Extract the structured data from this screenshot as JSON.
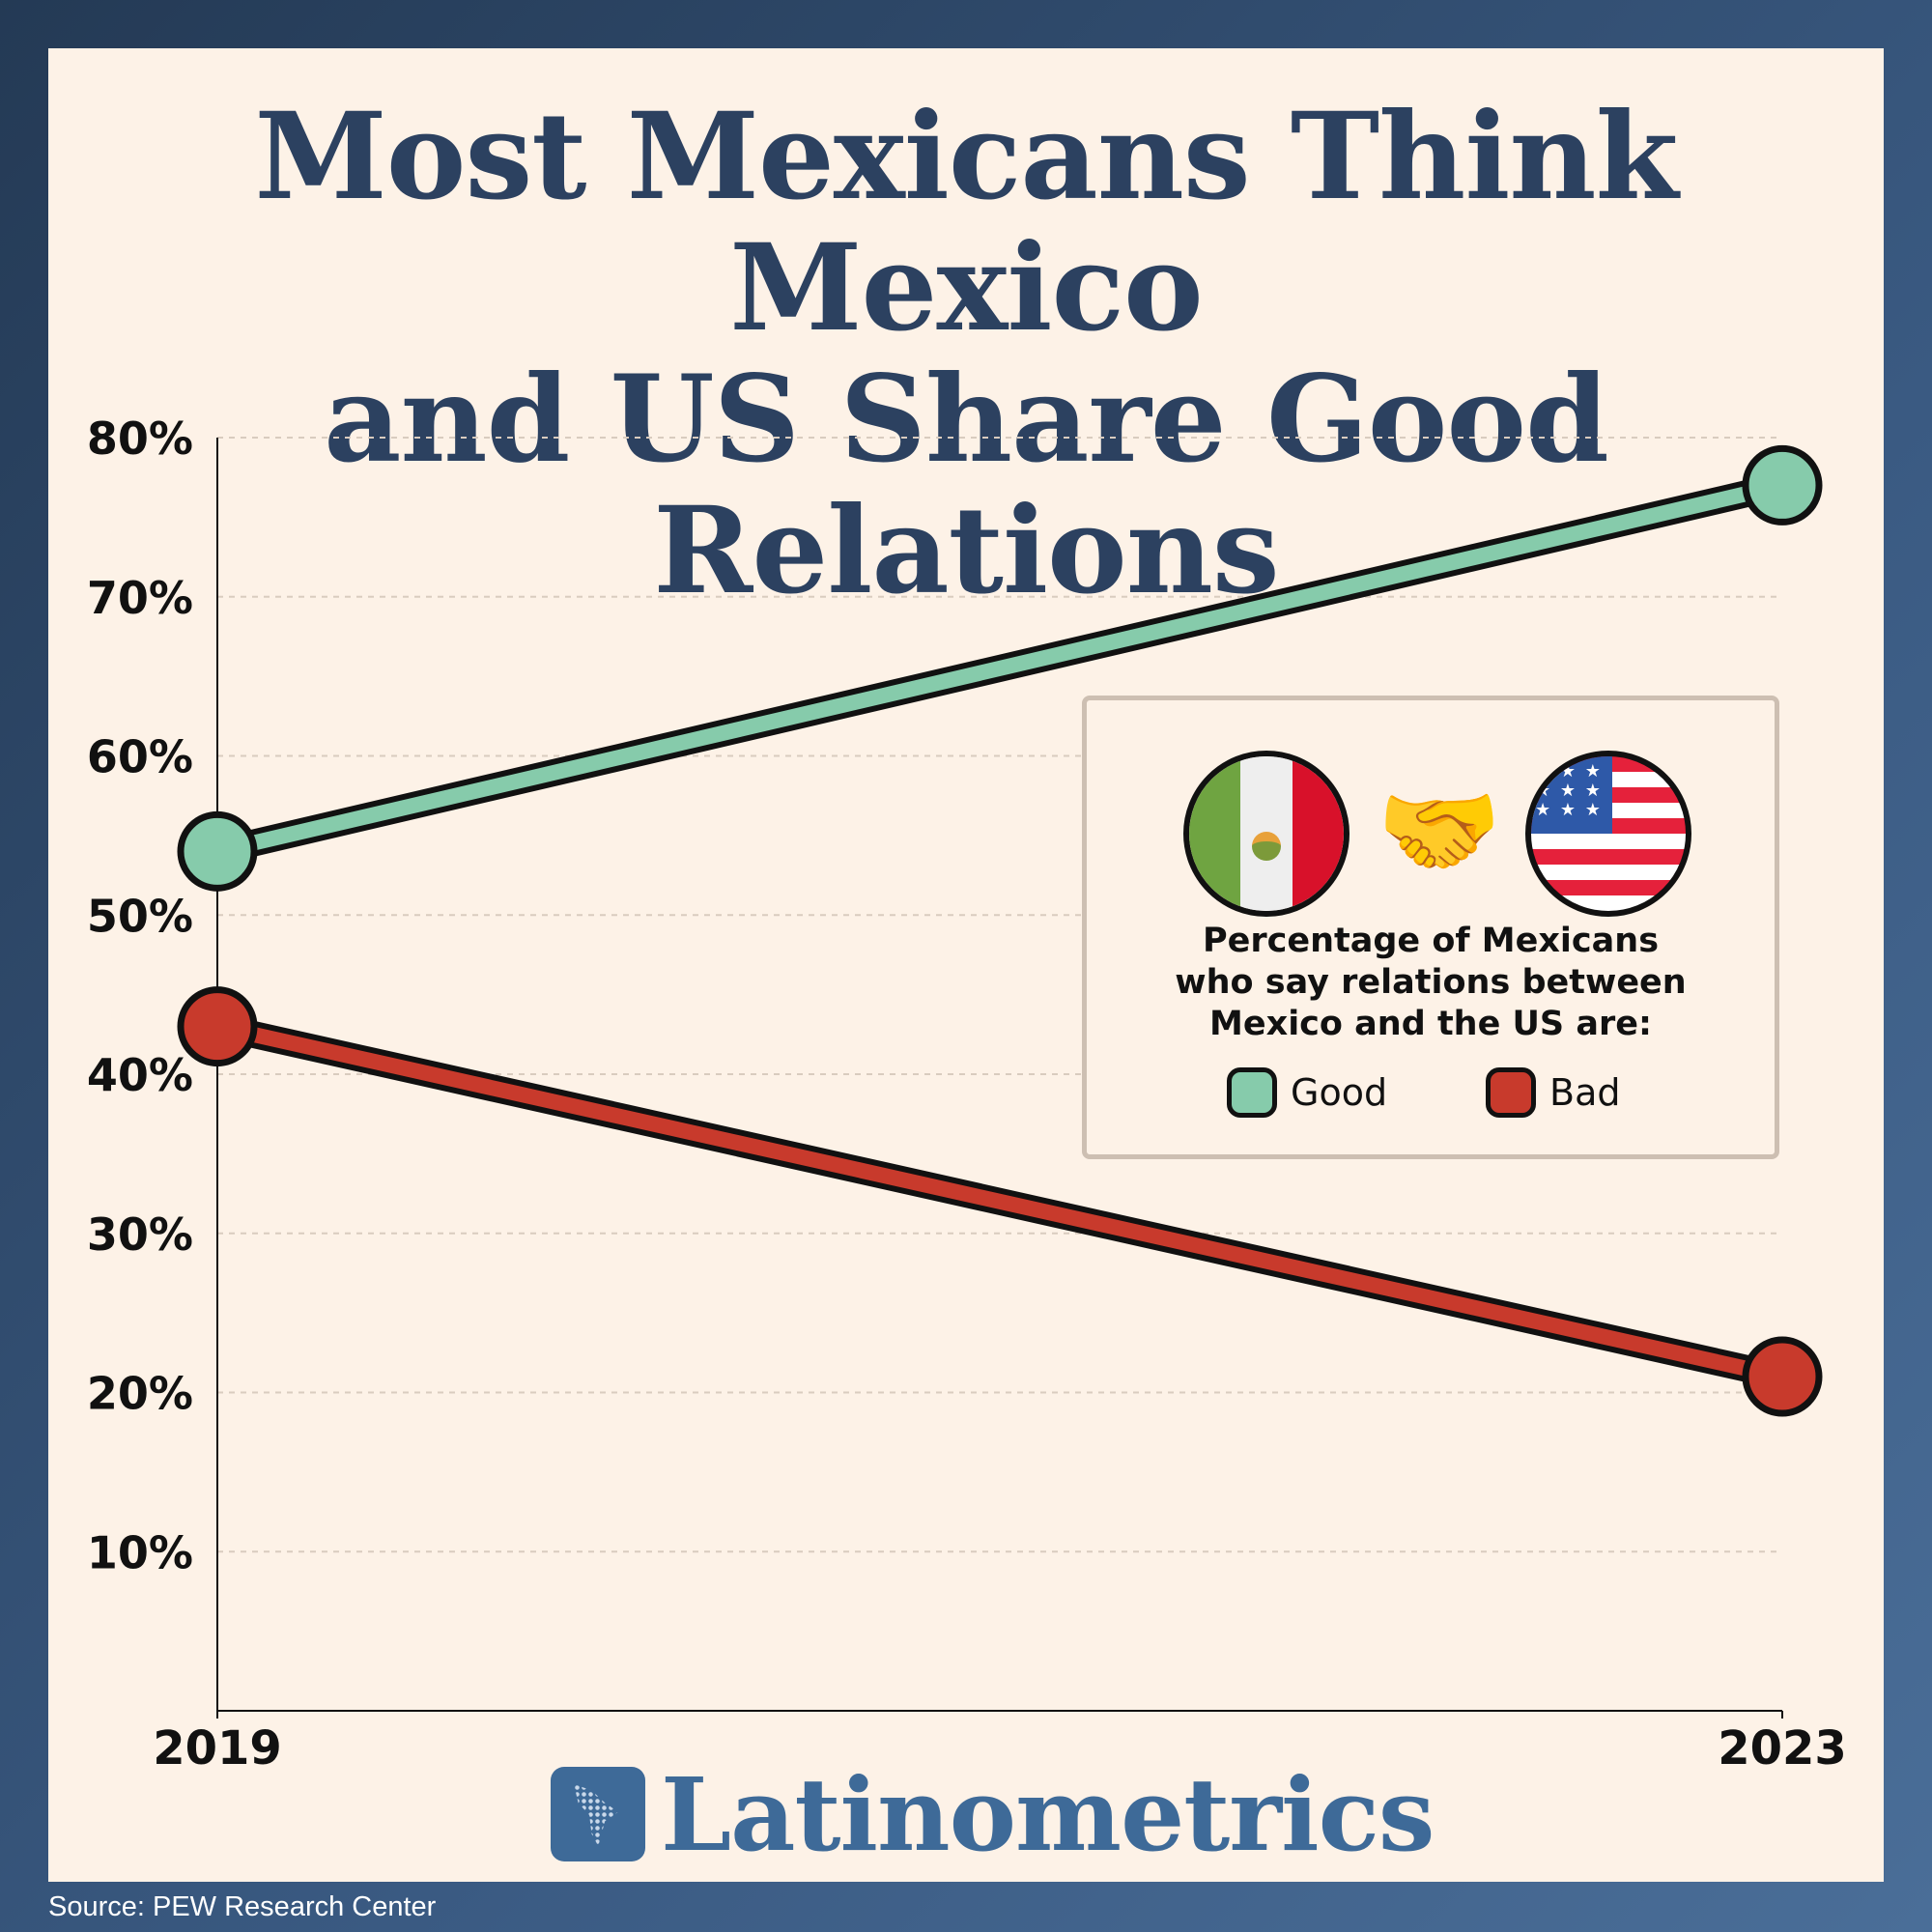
{
  "title": {
    "line1": "Most Mexicans Think Mexico",
    "line2": "and US Share Good Relations"
  },
  "legend": {
    "flag_left_icon": "mexico-flag-icon",
    "middle_icon": "handshake-icon",
    "middle_glyph": "🤝",
    "flag_right_icon": "us-flag-icon",
    "us_canton_stars": "★ ★ ★ ★ ★ ★ ★ ★ ★",
    "title_line1": "Percentage of Mexicans",
    "title_line2": "who say relations between",
    "title_line3": "Mexico and the US are:",
    "good_label": "Good",
    "bad_label": "Bad"
  },
  "brand": {
    "name": "Latinometrics"
  },
  "source": "Source: PEW Research Center",
  "colors": {
    "good": "#86cbab",
    "bad": "#c83a2c",
    "title": "#2c4160",
    "brand": "#3e6a98",
    "panel": "#fdf2e7"
  },
  "chart_data": {
    "type": "line",
    "x": [
      "2019",
      "2023"
    ],
    "series": [
      {
        "name": "Good",
        "values": [
          54,
          77
        ],
        "color": "#86cbab"
      },
      {
        "name": "Bad",
        "values": [
          43,
          21
        ],
        "color": "#c83a2c"
      }
    ],
    "ylim": [
      0,
      80
    ],
    "yticks": [
      10,
      20,
      30,
      40,
      50,
      60,
      70,
      80
    ],
    "ytick_labels": [
      "10%",
      "20%",
      "30%",
      "40%",
      "50%",
      "60%",
      "70%",
      "80%"
    ],
    "grid": true,
    "legend_position": "right"
  }
}
